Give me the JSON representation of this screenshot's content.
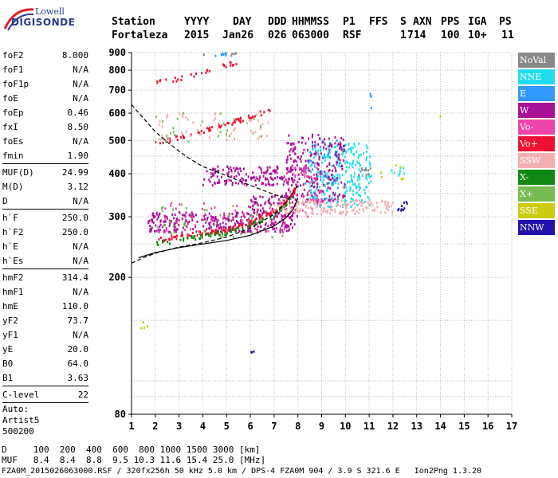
{
  "logo": {
    "line1": "Lowell",
    "line2": "DIGISONDE"
  },
  "header": {
    "labels": [
      "Station",
      "YYYY",
      "DAY",
      "DDD",
      "HHMMSS",
      "P1",
      "FFS",
      "S",
      "AXN",
      "PPS",
      "IGA",
      "PS"
    ],
    "values": [
      "Fortaleza",
      "2015",
      "Jan26",
      "026",
      "063000",
      "RSF",
      "",
      "1",
      "714",
      "100",
      "10+",
      "11"
    ]
  },
  "params": [
    {
      "label": "foF2",
      "value": "8.000"
    },
    {
      "label": "foF1",
      "value": "N/A"
    },
    {
      "label": "foF1p",
      "value": "N/A"
    },
    {
      "label": "foE",
      "value": "N/A"
    },
    {
      "label": "foEp",
      "value": "0.46"
    },
    {
      "label": "fxI",
      "value": "8.50"
    },
    {
      "label": "foEs",
      "value": "N/A"
    },
    {
      "label": "fmin",
      "value": "1.90"
    },
    {
      "sep": true
    },
    {
      "label": "MUF(D)",
      "value": "24.99"
    },
    {
      "label": "M(D)",
      "value": "3.12"
    },
    {
      "label": "D",
      "value": "N/A"
    },
    {
      "sep": true
    },
    {
      "label": "h`F",
      "value": "250.0"
    },
    {
      "label": "h`F2",
      "value": "250.0"
    },
    {
      "label": "h`E",
      "value": "N/A"
    },
    {
      "label": "h`Es",
      "value": "N/A"
    },
    {
      "sep": true
    },
    {
      "label": "hmF2",
      "value": "314.4"
    },
    {
      "label": "hmF1",
      "value": "N/A"
    },
    {
      "label": "hmE",
      "value": "110.0"
    },
    {
      "label": "yF2",
      "value": "73.7"
    },
    {
      "label": "yF1",
      "value": "N/A"
    },
    {
      "label": "yE",
      "value": "20.0"
    },
    {
      "label": "B0",
      "value": "64.0"
    },
    {
      "label": "B1",
      "value": "3.63"
    },
    {
      "sep": true
    },
    {
      "label": "C-level",
      "value": "22"
    },
    {
      "sep": true
    },
    {
      "free": "Auto:"
    },
    {
      "free": "Artist5"
    },
    {
      "free": "500200"
    }
  ],
  "legend": [
    {
      "label": "NoVal",
      "color": "#888888"
    },
    {
      "label": "NNE",
      "color": "#22ddee"
    },
    {
      "label": "E",
      "color": "#3399ff"
    },
    {
      "label": "W",
      "color": "#aa1199"
    },
    {
      "label": "Vo-",
      "color": "#ee44aa"
    },
    {
      "label": "Vo+",
      "color": "#ee1133"
    },
    {
      "label": "SSW",
      "color": "#f4b0b0"
    },
    {
      "label": "X-",
      "color": "#118811"
    },
    {
      "label": "X+",
      "color": "#77bb55"
    },
    {
      "label": "SSE",
      "color": "#cccc11"
    },
    {
      "label": "NNW",
      "color": "#2211aa"
    }
  ],
  "footer": {
    "d_row": "D     100  200  400  600  800 1000 1500 3000 [km]",
    "muf_row": "MUF   8.4  8.4  8.8  9.5 10.3 11.6 15.4 25.0 [MHz]",
    "info": "FZA0M_2015026063000.RSF / 320fx256h 50 kHz 5.0 km / DPS-4 FZA0M 904 / 3.9 S 321.6 E   Ion2Png 1.3.20"
  },
  "chart_data": {
    "type": "scatter",
    "title": "",
    "xlabel": "",
    "ylabel": "",
    "xlim": [
      1,
      17
    ],
    "ylim": [
      80,
      900
    ],
    "yscale": "log",
    "x_ticks": [
      1,
      2,
      3,
      4,
      5,
      6,
      7,
      8,
      9,
      10,
      11,
      12,
      13,
      14,
      15,
      16,
      17
    ],
    "y_ticks": [
      80,
      200,
      300,
      400,
      500,
      600,
      700,
      800,
      900
    ],
    "grid": true,
    "curves": [
      {
        "style": "solid",
        "x": [
          1.3,
          2,
          3,
          4,
          5,
          6,
          7,
          7.5,
          7.8,
          8.0
        ],
        "y": [
          228,
          236,
          244,
          250,
          256,
          265,
          282,
          298,
          315,
          340
        ]
      },
      {
        "style": "dashed",
        "x": [
          1.0,
          1.5,
          2,
          2.5,
          3,
          3.5,
          4,
          5,
          6,
          7,
          7.5
        ],
        "y": [
          635,
          580,
          530,
          495,
          465,
          440,
          420,
          395,
          370,
          348,
          340
        ]
      },
      {
        "style": "dashed",
        "x": [
          1.0,
          1.5,
          2,
          3,
          4,
          5,
          6,
          7,
          7.5,
          8.0
        ],
        "y": [
          220,
          228,
          235,
          245,
          252,
          262,
          278,
          305,
          330,
          370
        ]
      }
    ],
    "series": [
      {
        "name": "NNE",
        "color": "#22ddee",
        "clusters": [
          {
            "x": [
              8.5,
              11.1
            ],
            "y": [
              320,
              490
            ],
            "n": 260
          },
          {
            "x": [
              11.8,
              12.6
            ],
            "y": [
              395,
              420
            ],
            "n": 8
          }
        ]
      },
      {
        "name": "E",
        "color": "#3399ff",
        "clusters": [
          {
            "x": [
              8.3,
              9.8
            ],
            "y": [
              330,
              500
            ],
            "n": 70
          },
          {
            "x": [
              4.4,
              5.0
            ],
            "y": [
              880,
              900
            ],
            "n": 8
          },
          {
            "x": [
              11.0,
              11.1
            ],
            "y": [
              620,
              690
            ],
            "n": 4
          }
        ]
      },
      {
        "name": "W",
        "color": "#aa1199",
        "clusters": [
          {
            "x": [
              1.7,
              8.0
            ],
            "y": [
              270,
              310
            ],
            "n": 300
          },
          {
            "x": [
              4.0,
              7.8
            ],
            "y": [
              370,
              420
            ],
            "n": 160
          },
          {
            "x": [
              7.5,
              10.0
            ],
            "y": [
              330,
              520
            ],
            "n": 220
          },
          {
            "x": [
              6.0,
              8.0
            ],
            "y": [
              300,
              345
            ],
            "n": 80
          }
        ]
      },
      {
        "name": "Vo-",
        "color": "#ee44aa",
        "clusters": [
          {
            "x": [
              2.0,
              7.5
            ],
            "y": [
              270,
              330
            ],
            "n": 60
          },
          {
            "x": [
              7.5,
              9.0
            ],
            "y": [
              300,
              420
            ],
            "n": 60
          }
        ]
      },
      {
        "name": "Vo+",
        "color": "#ee1133",
        "clusters": [
          {
            "x": [
              1.9,
              7.9
            ],
            "y": [
              255,
              345
            ],
            "n": 140,
            "trace": [
              [
                1.9,
                255
              ],
              [
                3,
                262
              ],
              [
                4,
                268
              ],
              [
                5,
                276
              ],
              [
                6,
                288
              ],
              [
                7,
                310
              ],
              [
                7.5,
                330
              ],
              [
                7.9,
                360
              ]
            ]
          },
          {
            "x": [
              1.9,
              6.9
            ],
            "y": [
              490,
              610
            ],
            "n": 60,
            "trace": [
              [
                1.9,
                490
              ],
              [
                3,
                510
              ],
              [
                4,
                530
              ],
              [
                5,
                555
              ],
              [
                6,
                585
              ],
              [
                6.9,
                615
              ]
            ]
          },
          {
            "x": [
              1.9,
              5.8
            ],
            "y": [
              730,
              860
            ],
            "n": 30,
            "trace": [
              [
                1.9,
                730
              ],
              [
                3,
                755
              ],
              [
                4,
                785
              ],
              [
                5,
                825
              ],
              [
                5.8,
                860
              ]
            ]
          }
        ]
      },
      {
        "name": "SSW",
        "color": "#f4b0b0",
        "clusters": [
          {
            "x": [
              7.0,
              12.0
            ],
            "y": [
              305,
              335
            ],
            "n": 160
          },
          {
            "x": [
              1.9,
              6.9
            ],
            "y": [
              500,
              600
            ],
            "n": 50
          }
        ]
      },
      {
        "name": "X-",
        "color": "#118811",
        "clusters": [
          {
            "x": [
              2.0,
              7.8
            ],
            "y": [
              250,
              340
            ],
            "n": 70,
            "trace": [
              [
                2,
                250
              ],
              [
                3,
                257
              ],
              [
                4,
                263
              ],
              [
                5,
                270
              ],
              [
                6,
                282
              ],
              [
                7,
                302
              ],
              [
                7.8,
                340
              ]
            ]
          }
        ]
      },
      {
        "name": "X+",
        "color": "#77bb55",
        "clusters": [
          {
            "x": [
              2.0,
              7.5
            ],
            "y": [
              255,
              330
            ],
            "n": 40
          },
          {
            "x": [
              2.0,
              6.5
            ],
            "y": [
              495,
              600
            ],
            "n": 25
          }
        ]
      },
      {
        "name": "SSE",
        "color": "#cccc11",
        "clusters": [
          {
            "x": [
              1.4,
              1.7
            ],
            "y": [
              142,
              150
            ],
            "n": 4
          },
          {
            "x": [
              11.5,
              12.5
            ],
            "y": [
              385,
              425
            ],
            "n": 6
          },
          {
            "x": [
              13.8,
              14.0
            ],
            "y": [
              585,
              592
            ],
            "n": 1
          }
        ]
      },
      {
        "name": "NNW",
        "color": "#2211aa",
        "clusters": [
          {
            "x": [
              12.2,
              12.6
            ],
            "y": [
              310,
              335
            ],
            "n": 10
          },
          {
            "x": [
              5.8,
              6.2
            ],
            "y": [
              118,
              122
            ],
            "n": 3
          }
        ]
      },
      {
        "name": "NoVal",
        "color": "#888888",
        "clusters": [
          {
            "x": [
              4.0,
              6.0
            ],
            "y": [
              880,
              900
            ],
            "n": 5
          },
          {
            "x": [
              10.5,
              11.1
            ],
            "y": [
              390,
              420
            ],
            "n": 10
          }
        ]
      }
    ]
  }
}
